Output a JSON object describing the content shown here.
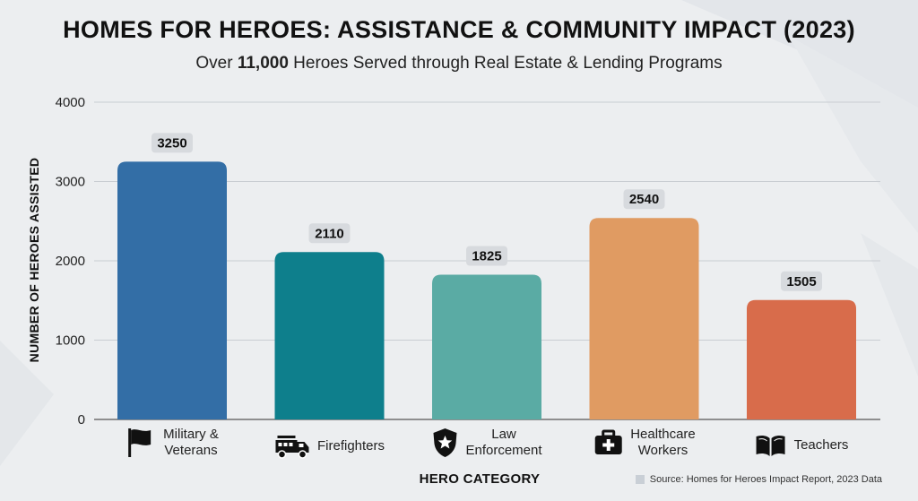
{
  "header": {
    "title": "HOMES FOR HEROES: ASSISTANCE & COMMUNITY IMPACT (2023)",
    "subtitle_prefix": "Over ",
    "subtitle_bold": "11,000",
    "subtitle_suffix": " Heroes Served through Real Estate & Lending Programs"
  },
  "chart_data": {
    "type": "bar",
    "title": "HOMES FOR HEROES: ASSISTANCE & COMMUNITY IMPACT (2023)",
    "xlabel": "HERO CATEGORY",
    "ylabel": "NUMBER OF HEROES ASSISTED",
    "ylim": [
      0,
      4000
    ],
    "yticks": [
      0,
      1000,
      2000,
      3000,
      4000
    ],
    "grid": true,
    "categories": [
      "Military &\nVeterans",
      "Firefighters",
      "Law\nEnforcement",
      "Healthcare\nWorkers",
      "Teachers"
    ],
    "values": [
      3250,
      2110,
      1825,
      2540,
      1505
    ],
    "colors": [
      "#336ea6",
      "#0e7f8c",
      "#5aaba4",
      "#e09b62",
      "#d86c4b"
    ],
    "icons": [
      "flag-icon",
      "fire-truck-icon",
      "police-badge-icon",
      "first-aid-kit-icon",
      "open-book-icon"
    ]
  },
  "footer": {
    "source": "Source: Homes for Heroes Impact Report, 2023 Data"
  }
}
